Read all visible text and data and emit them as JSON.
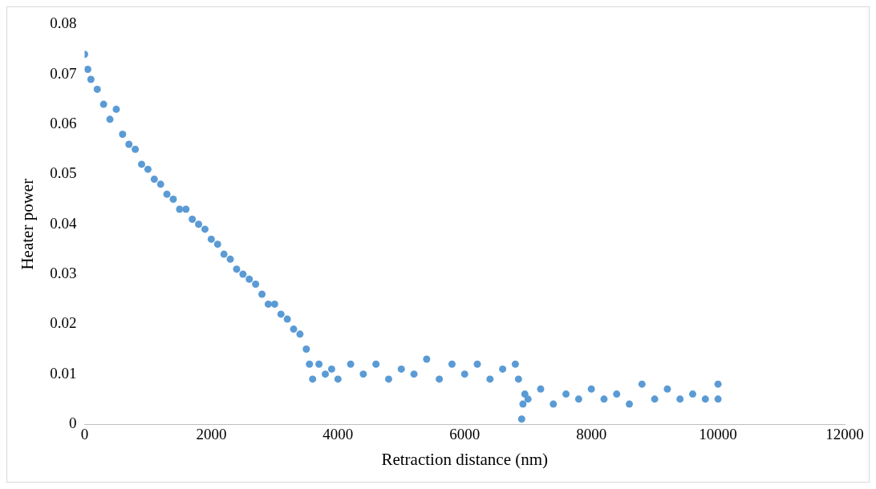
{
  "chart_data": {
    "type": "scatter",
    "xlabel": "Retraction distance (nm)",
    "ylabel": "Heater power",
    "xlim": [
      0,
      12000
    ],
    "xticks": [
      0,
      2000,
      4000,
      6000,
      8000,
      10000,
      12000
    ],
    "ylim": [
      0,
      0.08
    ],
    "yticks": [
      0,
      0.01,
      0.02,
      0.03,
      0.04,
      0.05,
      0.06,
      0.07,
      0.08
    ],
    "grid": false,
    "legend": false,
    "marker": "circle",
    "series": [
      {
        "color": "#5b9bd5",
        "x": [
          0,
          50,
          100,
          200,
          300,
          400,
          500,
          600,
          700,
          800,
          900,
          1000,
          1100,
          1200,
          1300,
          1400,
          1500,
          1600,
          1700,
          1800,
          1900,
          2000,
          2100,
          2200,
          2300,
          2400,
          2500,
          2600,
          2700,
          2800,
          2900,
          3000,
          3100,
          3200,
          3300,
          3400,
          3500,
          3550,
          3600,
          3700,
          3800,
          3900,
          4000,
          4200,
          4400,
          4600,
          4800,
          5000,
          5200,
          5400,
          5600,
          5800,
          6000,
          6200,
          6400,
          6600,
          6800,
          6850,
          6900,
          6920,
          6950,
          7000,
          7200,
          7400,
          7600,
          7800,
          8000,
          8200,
          8400,
          8600,
          8800,
          9000,
          9200,
          9400,
          9600,
          9800,
          10000,
          10000
        ],
        "values": [
          0.074,
          0.071,
          0.069,
          0.067,
          0.064,
          0.061,
          0.063,
          0.058,
          0.056,
          0.055,
          0.052,
          0.051,
          0.049,
          0.048,
          0.046,
          0.045,
          0.043,
          0.043,
          0.041,
          0.04,
          0.039,
          0.037,
          0.036,
          0.034,
          0.033,
          0.031,
          0.03,
          0.029,
          0.028,
          0.026,
          0.024,
          0.024,
          0.022,
          0.021,
          0.019,
          0.018,
          0.015,
          0.012,
          0.009,
          0.012,
          0.01,
          0.011,
          0.009,
          0.012,
          0.01,
          0.012,
          0.009,
          0.011,
          0.01,
          0.013,
          0.009,
          0.012,
          0.01,
          0.012,
          0.009,
          0.011,
          0.012,
          0.009,
          0.001,
          0.004,
          0.006,
          0.005,
          0.007,
          0.004,
          0.006,
          0.005,
          0.007,
          0.005,
          0.006,
          0.004,
          0.008,
          0.005,
          0.007,
          0.005,
          0.006,
          0.005,
          0.008,
          0.005
        ]
      }
    ]
  }
}
